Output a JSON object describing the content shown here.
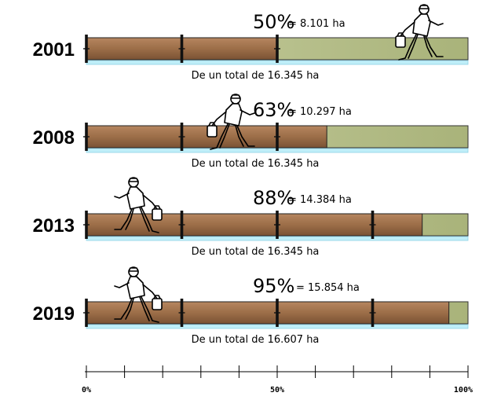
{
  "chart_data": {
    "type": "bar",
    "orientation": "horizontal",
    "title": "",
    "xlabel": "",
    "ylabel": "",
    "xlim": [
      0,
      100
    ],
    "axis_ticks": [
      {
        "value": 0,
        "label": "0%"
      },
      {
        "value": 50,
        "label": "50%"
      },
      {
        "value": 100,
        "label": "100%"
      }
    ],
    "categories": [
      "2001",
      "2008",
      "2013",
      "2019"
    ],
    "values": [
      50,
      63,
      88,
      95
    ],
    "percent_labels": [
      "50%",
      "63%",
      "88%",
      "95%"
    ],
    "hectare_labels": [
      "= 8.101 ha",
      "= 10.297 ha",
      "= 14.384 ha",
      "= 15.854 ha"
    ],
    "total_labels": [
      "De un total de 16.345 ha",
      "De un total de 16.345 ha",
      "De un total de 16.345 ha",
      "De un total de 16.607 ha"
    ],
    "filled_color": "#9c6e48",
    "remaining_color": "#bcc48e",
    "baseline_color": "#bfeef8"
  }
}
